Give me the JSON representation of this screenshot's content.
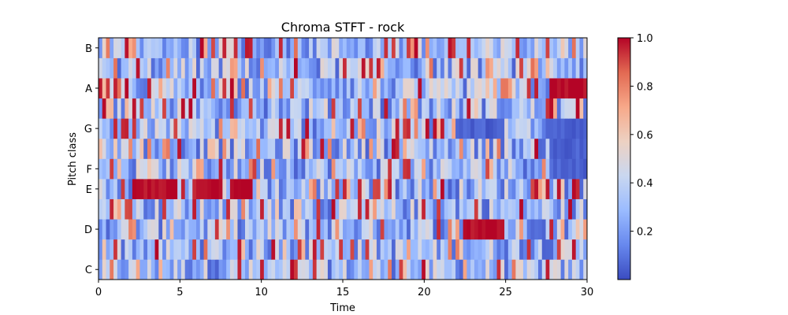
{
  "chart_data": {
    "type": "heatmap",
    "title": "Chroma STFT - rock",
    "xlabel": "Time",
    "ylabel": "Pitch class",
    "xlim": [
      0,
      30
    ],
    "x_ticks": [
      0,
      5,
      10,
      15,
      20,
      25,
      30
    ],
    "x_tick_labels": [
      "0",
      "5",
      "10",
      "15",
      "20",
      "25",
      "30"
    ],
    "y_rows": [
      "C",
      "C#",
      "D",
      "D#",
      "E",
      "F",
      "F#",
      "G",
      "G#",
      "A",
      "A#",
      "B"
    ],
    "y_tick_labels": [
      "C",
      "D",
      "E",
      "F",
      "G",
      "A",
      "B"
    ],
    "y_tick_rows": [
      0,
      2,
      4,
      5,
      7,
      9,
      11
    ],
    "colormap": "coolwarm",
    "colormap_stops": [
      "#3b4cc0",
      "#6788ee",
      "#9abbff",
      "#c9d7f0",
      "#edd1c2",
      "#f7a889",
      "#e26952",
      "#b40426"
    ],
    "colorbar_range": [
      0.0,
      1.0
    ],
    "colorbar_ticks": [
      0.2,
      0.4,
      0.6,
      0.8,
      1.0
    ],
    "colorbar_tick_labels": [
      "0.2",
      "0.4",
      "0.6",
      "0.8",
      "1.0"
    ],
    "frames": 130,
    "highlights": [
      {
        "pitch": "E",
        "t_start": 2.0,
        "t_end": 4.8,
        "value": 1.0
      },
      {
        "pitch": "E",
        "t_start": 6.1,
        "t_end": 7.6,
        "value": 1.0
      },
      {
        "pitch": "E",
        "t_start": 8.0,
        "t_end": 9.5,
        "value": 1.0
      },
      {
        "pitch": "A",
        "t_start": 27.6,
        "t_end": 30.0,
        "value": 1.0
      },
      {
        "pitch": "D",
        "t_start": 22.5,
        "t_end": 25.0,
        "value": 1.0
      },
      {
        "pitch": "G",
        "t_start": 22.0,
        "t_end": 25.0,
        "value": 0.05
      },
      {
        "pitch": "G",
        "t_start": 27.6,
        "t_end": 30.0,
        "value": 0.05
      },
      {
        "pitch": "F",
        "t_start": 27.6,
        "t_end": 30.0,
        "value": 0.05
      },
      {
        "pitch": "F#",
        "t_start": 27.6,
        "t_end": 30.0,
        "value": 0.05
      }
    ]
  }
}
